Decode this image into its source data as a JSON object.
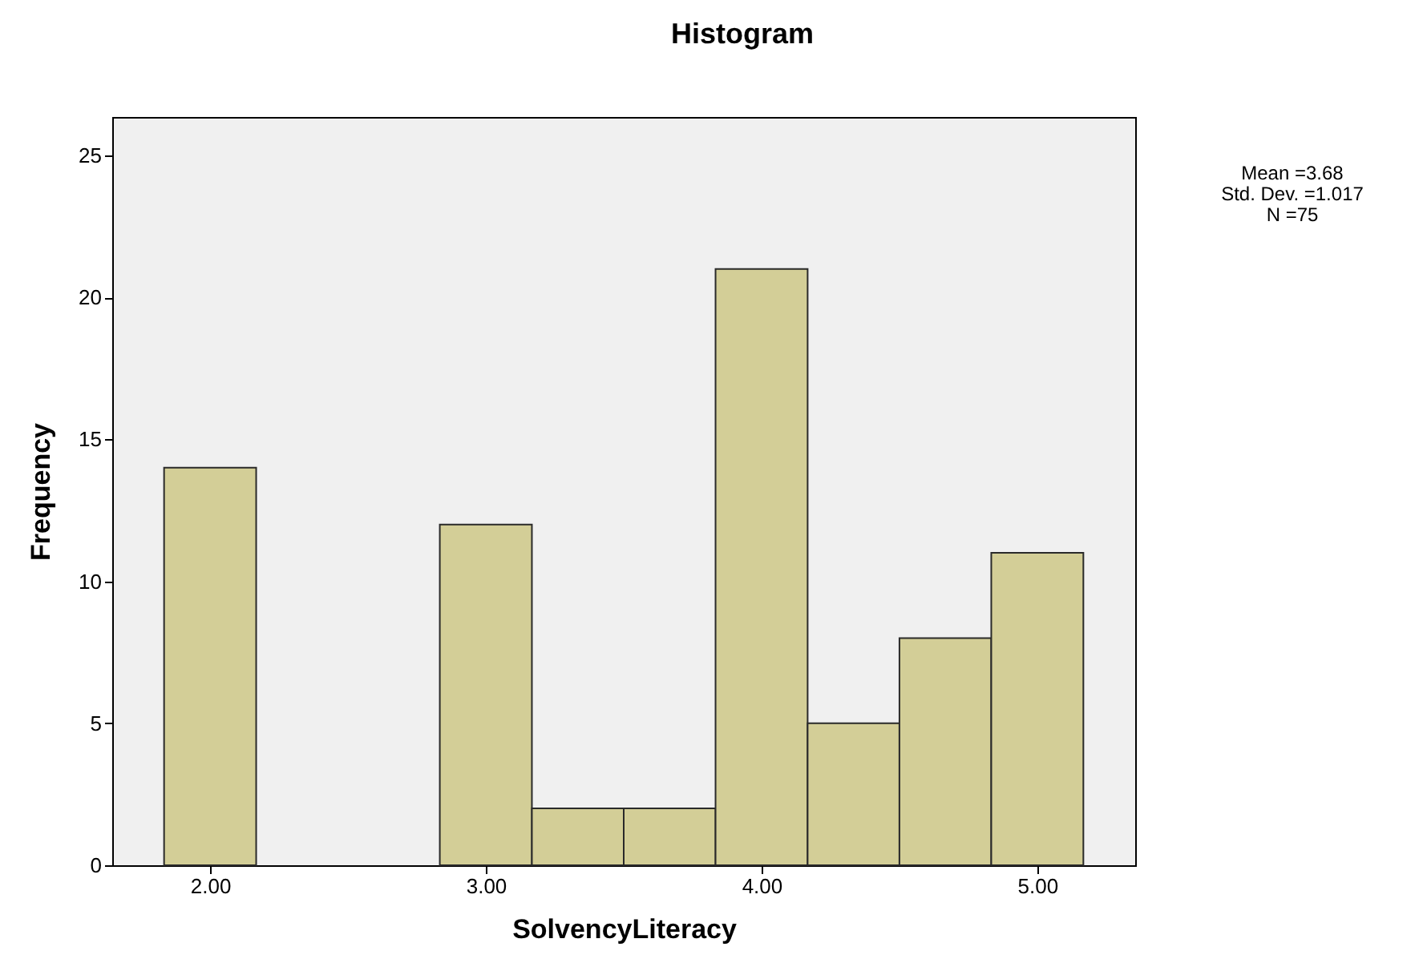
{
  "chart_data": {
    "type": "histogram",
    "title": "Histogram",
    "xlabel": "SolvencyLiteracy",
    "ylabel": "Frequency",
    "annotations": [
      "Mean =3.68",
      "Std. Dev. =1.017",
      "N =75"
    ],
    "bins": [
      1.833,
      2.167,
      2.5,
      2.833,
      3.167,
      3.5,
      3.833,
      4.167,
      4.5,
      4.833,
      5.167
    ],
    "values": [
      14,
      0,
      0,
      12,
      2,
      2,
      21,
      5,
      8,
      11
    ],
    "color": "#d3ce97",
    "xlim": [
      1.645,
      5.355
    ],
    "ylim": [
      0,
      26.35
    ],
    "xticks": [
      {
        "value": 2,
        "label": "2.00"
      },
      {
        "value": 3,
        "label": "3.00"
      },
      {
        "value": 4,
        "label": "4.00"
      },
      {
        "value": 5,
        "label": "5.00"
      }
    ],
    "yticks": [
      0,
      5,
      10,
      15,
      20,
      25
    ]
  }
}
